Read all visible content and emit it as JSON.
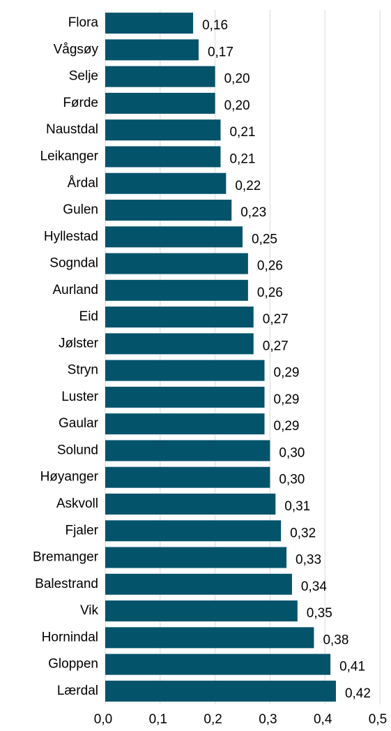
{
  "chart_data": {
    "type": "bar",
    "orientation": "horizontal",
    "categories": [
      "Flora",
      "Vågsøy",
      "Selje",
      "Førde",
      "Naustdal",
      "Leikanger",
      "Årdal",
      "Gulen",
      "Hyllestad",
      "Sogndal",
      "Aurland",
      "Eid",
      "Jølster",
      "Stryn",
      "Luster",
      "Gaular",
      "Solund",
      "Høyanger",
      "Askvoll",
      "Fjaler",
      "Bremanger",
      "Balestrand",
      "Vik",
      "Hornindal",
      "Gloppen",
      "Lærdal"
    ],
    "values": [
      0.16,
      0.17,
      0.2,
      0.2,
      0.21,
      0.21,
      0.22,
      0.23,
      0.25,
      0.26,
      0.26,
      0.27,
      0.27,
      0.29,
      0.29,
      0.29,
      0.3,
      0.3,
      0.31,
      0.32,
      0.33,
      0.34,
      0.35,
      0.38,
      0.41,
      0.42
    ],
    "value_labels": [
      "0,16",
      "0,17",
      "0,20",
      "0,20",
      "0,21",
      "0,21",
      "0,22",
      "0,23",
      "0,25",
      "0,26",
      "0,26",
      "0,27",
      "0,27",
      "0,29",
      "0,29",
      "0,29",
      "0,30",
      "0,30",
      "0,31",
      "0,32",
      "0,33",
      "0,34",
      "0,35",
      "0,38",
      "0,41",
      "0,42"
    ],
    "color": "#03536b",
    "xlim": [
      0,
      0.5
    ],
    "xticks": [
      {
        "value": 0,
        "label": "0,0"
      },
      {
        "value": 0.1,
        "label": "0,1"
      },
      {
        "value": 0.2,
        "label": "0,2"
      },
      {
        "value": 0.3,
        "label": "0,3"
      },
      {
        "value": 0.4,
        "label": "0,4"
      },
      {
        "value": 0.5,
        "label": "0,5"
      }
    ],
    "grid": true
  }
}
